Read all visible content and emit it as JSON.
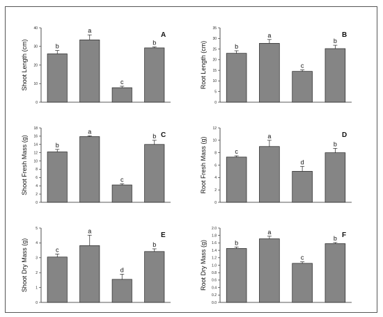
{
  "chart_data": [
    {
      "type": "bar",
      "panel": "A",
      "ylabel": "Shoot Length (cm)",
      "ylim": [
        0,
        40
      ],
      "yticks": [
        0,
        10,
        20,
        30,
        40
      ],
      "values": [
        26,
        33.5,
        7.8,
        29.2
      ],
      "errors": [
        1.8,
        2.7,
        0.8,
        0.5
      ],
      "letters": [
        "b",
        "a",
        "c",
        "b"
      ],
      "grid": false
    },
    {
      "type": "bar",
      "panel": "B",
      "ylabel": "Root Length (cm)",
      "ylim": [
        0,
        35
      ],
      "yticks": [
        0,
        5,
        10,
        15,
        20,
        25,
        30,
        35
      ],
      "values": [
        23,
        27.7,
        14.5,
        25.2
      ],
      "errors": [
        1.2,
        1.8,
        0.7,
        1.6
      ],
      "letters": [
        "b",
        "a",
        "c",
        "b"
      ],
      "grid": false
    },
    {
      "type": "bar",
      "panel": "C",
      "ylabel": "Shoot Fresh Mass (g)",
      "ylim": [
        0,
        18
      ],
      "yticks": [
        0,
        2,
        4,
        6,
        8,
        10,
        12,
        14,
        16,
        18
      ],
      "values": [
        12.2,
        15.9,
        4.2,
        14
      ],
      "errors": [
        0.6,
        0.2,
        0.3,
        1
      ],
      "letters": [
        "b",
        "a",
        "c",
        "b"
      ],
      "grid": false
    },
    {
      "type": "bar",
      "panel": "D",
      "ylabel": "Root Fresh Mass (g)",
      "ylim": [
        0,
        12
      ],
      "yticks": [
        0,
        2,
        4,
        6,
        8,
        10,
        12
      ],
      "values": [
        7.3,
        9,
        5,
        8
      ],
      "errors": [
        0.2,
        1,
        0.8,
        0.7
      ],
      "letters": [
        "c",
        "a",
        "d",
        "b"
      ],
      "grid": false
    },
    {
      "type": "bar",
      "panel": "E",
      "ylabel": "Shoot Dry Mass (g)",
      "ylim": [
        0,
        5
      ],
      "yticks": [
        0,
        1,
        2,
        3,
        4,
        5
      ],
      "values": [
        3.05,
        3.82,
        1.55,
        3.42
      ],
      "errors": [
        0.2,
        0.7,
        0.35,
        0.18
      ],
      "letters": [
        "c",
        "a",
        "d",
        "b"
      ],
      "grid": false
    },
    {
      "type": "bar",
      "panel": "F",
      "ylabel": "Root Dry Mass (g)",
      "ylim": [
        0,
        2.0
      ],
      "yticks": [
        0,
        0.2,
        0.4,
        0.6,
        0.8,
        1.0,
        1.2,
        1.4,
        1.6,
        1.8,
        2.0
      ],
      "ytick_labels": [
        "0.0",
        "0.2",
        "0.4",
        "0.6",
        "0.8",
        "1.0",
        "1.2",
        "1.4",
        "1.6",
        "1.8",
        "2.0"
      ],
      "values": [
        1.45,
        1.71,
        1.05,
        1.58
      ],
      "errors": [
        0.04,
        0.07,
        0.04,
        0.03
      ],
      "letters": [
        "b",
        "a",
        "c",
        "b"
      ],
      "grid": false
    }
  ],
  "colors": {
    "bar_fill": "#858585",
    "bar_stroke": "#222222",
    "axis": "#222222"
  }
}
